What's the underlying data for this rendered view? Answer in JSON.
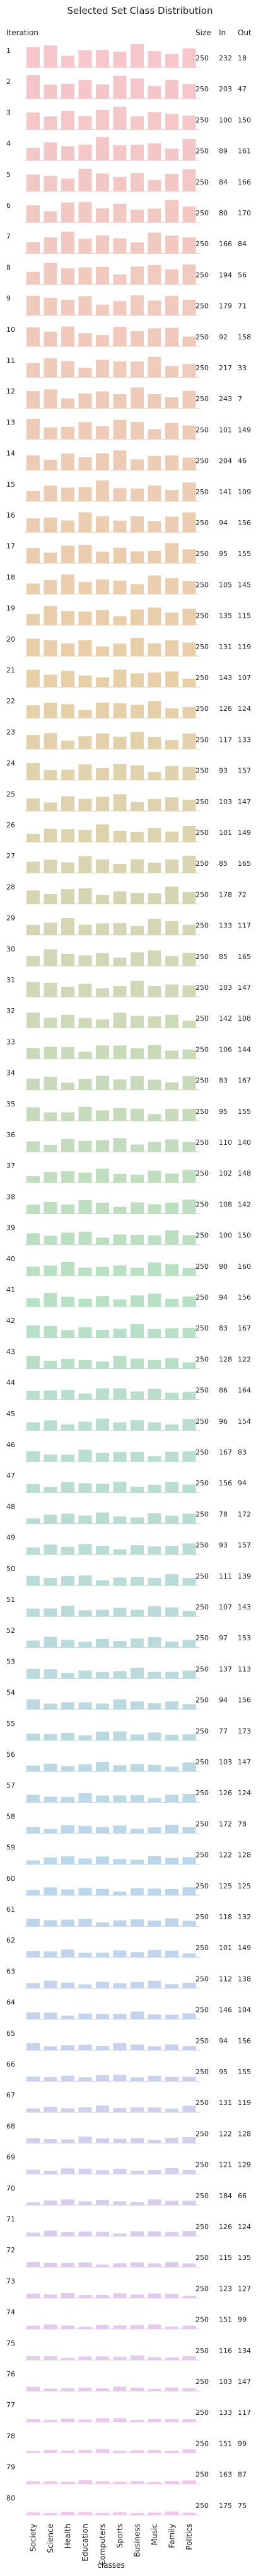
{
  "chart_data": {
    "type": "bar",
    "title": "Selected Set Class Distribution",
    "ylabel": "Iteration",
    "xlabel": "classes",
    "categories": [
      "Society",
      "Science",
      "Health",
      "Education",
      "Computers",
      "Sports",
      "Business",
      "Music",
      "Family",
      "Politics"
    ],
    "column_headers": [
      "Size",
      "In",
      "Out"
    ],
    "iterations": [
      "1",
      "2",
      "3",
      "4",
      "5",
      "6",
      "7",
      "8",
      "9",
      "10",
      "11",
      "12",
      "13",
      "14",
      "15",
      "16",
      "17",
      "18",
      "19",
      "20",
      "21",
      "22",
      "23",
      "24",
      "25",
      "26",
      "27",
      "28",
      "29",
      "30",
      "31",
      "32",
      "33",
      "34",
      "35",
      "36",
      "37",
      "38",
      "39",
      "40",
      "41",
      "42",
      "43",
      "44",
      "45",
      "46",
      "47",
      "48",
      "49",
      "50",
      "51",
      "52",
      "53",
      "54",
      "55",
      "56",
      "57",
      "58",
      "59",
      "60",
      "61",
      "62",
      "63",
      "64",
      "65",
      "66",
      "67",
      "68",
      "69",
      "70",
      "71",
      "72",
      "73",
      "74",
      "75",
      "76",
      "77",
      "78",
      "79",
      "80"
    ],
    "size": [
      250,
      250,
      250,
      250,
      250,
      250,
      250,
      250,
      250,
      250,
      250,
      250,
      250,
      250,
      250,
      250,
      250,
      250,
      250,
      250,
      250,
      250,
      250,
      250,
      250,
      250,
      250,
      250,
      250,
      250,
      250,
      250,
      250,
      250,
      250,
      250,
      250,
      250,
      250,
      250,
      250,
      250,
      250,
      250,
      250,
      250,
      250,
      250,
      250,
      250,
      250,
      250,
      250,
      250,
      250,
      250,
      250,
      250,
      250,
      250,
      250,
      250,
      250,
      250,
      250,
      250,
      250,
      250,
      250,
      250,
      250,
      250,
      250,
      250,
      250,
      250,
      250,
      250,
      250,
      250
    ],
    "in": [
      232,
      203,
      100,
      89,
      84,
      80,
      166,
      194,
      179,
      92,
      217,
      243,
      101,
      204,
      141,
      94,
      95,
      105,
      135,
      131,
      143,
      126,
      117,
      93,
      103,
      101,
      85,
      178,
      133,
      85,
      103,
      142,
      106,
      83,
      95,
      110,
      102,
      108,
      100,
      90,
      94,
      83,
      128,
      86,
      96,
      167,
      156,
      78,
      93,
      111,
      107,
      97,
      137,
      94,
      77,
      103,
      126,
      172,
      122,
      125,
      118,
      101,
      112,
      146,
      94,
      95,
      131,
      122,
      121,
      184,
      126,
      115,
      123,
      151,
      116,
      103,
      133,
      151,
      163,
      175
    ],
    "out": [
      18,
      47,
      150,
      161,
      166,
      170,
      84,
      56,
      71,
      158,
      33,
      7,
      149,
      46,
      109,
      156,
      155,
      145,
      115,
      119,
      107,
      124,
      133,
      157,
      147,
      149,
      165,
      72,
      117,
      165,
      147,
      108,
      144,
      167,
      155,
      140,
      148,
      142,
      150,
      160,
      156,
      167,
      122,
      164,
      154,
      83,
      94,
      172,
      157,
      139,
      143,
      153,
      113,
      156,
      173,
      147,
      124,
      78,
      128,
      125,
      132,
      149,
      138,
      104,
      156,
      155,
      119,
      128,
      129,
      66,
      124,
      135,
      127,
      99,
      134,
      147,
      117,
      99,
      87,
      75
    ],
    "bar_scale": 0.1,
    "colors": {
      "bar_start": "#f5c6cc",
      "bar_mid1": "#e8cfa8",
      "bar_mid2": "#b8e0c4",
      "bar_mid3": "#bcd6ec",
      "bar_end": "#f2c6ec",
      "baseline": "#bb3322"
    }
  }
}
